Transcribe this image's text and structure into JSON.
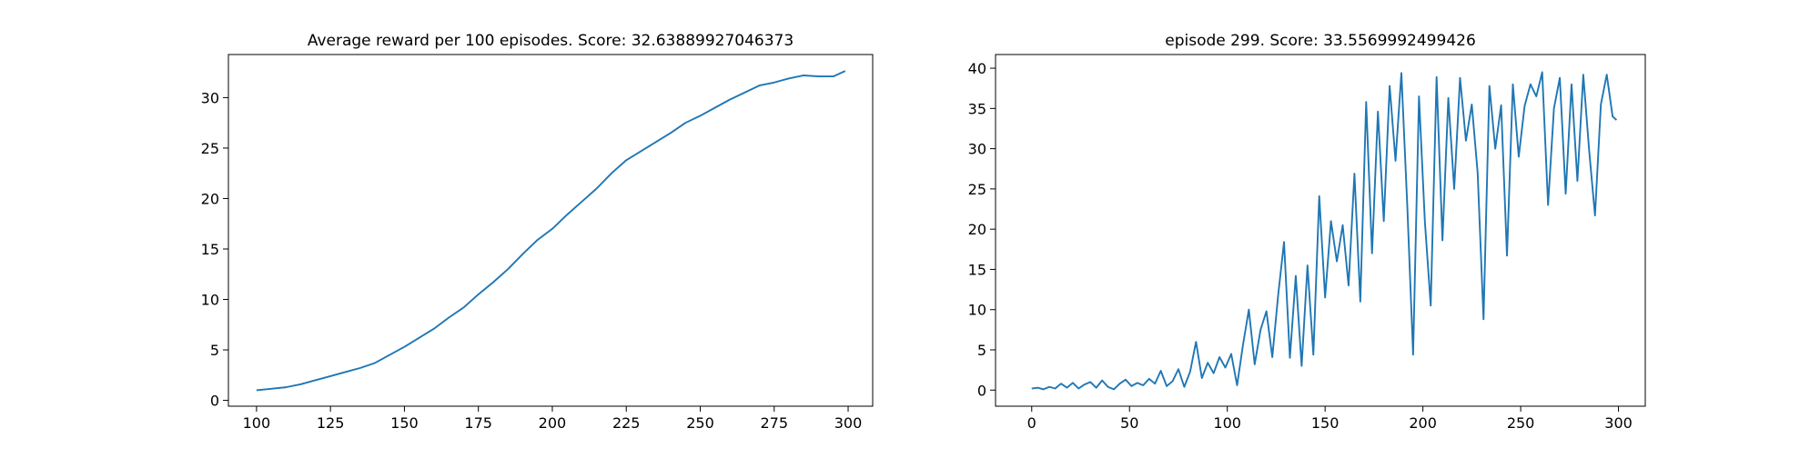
{
  "chart_data": [
    {
      "type": "line",
      "title": "Average reward per 100 episodes. Score: 32.63889927046373",
      "color": "#1f77b4",
      "x": [
        100,
        105,
        110,
        115,
        120,
        125,
        130,
        135,
        140,
        145,
        150,
        155,
        160,
        165,
        170,
        175,
        180,
        185,
        190,
        195,
        200,
        205,
        210,
        215,
        220,
        225,
        230,
        235,
        240,
        245,
        250,
        255,
        260,
        265,
        270,
        275,
        280,
        285,
        290,
        295,
        299
      ],
      "values": [
        1.0,
        1.15,
        1.3,
        1.6,
        2.0,
        2.4,
        2.8,
        3.2,
        3.7,
        4.5,
        5.3,
        6.2,
        7.1,
        8.2,
        9.2,
        10.5,
        11.7,
        13.0,
        14.5,
        15.9,
        17.0,
        18.4,
        19.7,
        21.0,
        22.5,
        23.8,
        24.7,
        25.6,
        26.5,
        27.5,
        28.2,
        29.0,
        29.8,
        30.5,
        31.2,
        31.5,
        31.9,
        32.2,
        32.1,
        32.1,
        32.64
      ],
      "xlim": [
        90.5,
        308.3
      ],
      "ylim": [
        -0.58,
        34.27
      ],
      "xticks": [
        100,
        125,
        150,
        175,
        200,
        225,
        250,
        275,
        300
      ],
      "yticks": [
        0,
        5,
        10,
        15,
        20,
        25,
        30
      ]
    },
    {
      "type": "line",
      "title": "episode 299. Score: 33.5569992499426",
      "color": "#1f77b4",
      "x": [
        0,
        3,
        6,
        9,
        12,
        15,
        18,
        21,
        24,
        27,
        30,
        33,
        36,
        39,
        42,
        45,
        48,
        51,
        54,
        57,
        60,
        63,
        66,
        69,
        72,
        75,
        78,
        81,
        84,
        87,
        90,
        93,
        96,
        99,
        102,
        105,
        108,
        111,
        114,
        117,
        120,
        123,
        126,
        129,
        132,
        135,
        138,
        141,
        144,
        147,
        150,
        153,
        156,
        159,
        162,
        165,
        168,
        171,
        174,
        177,
        180,
        183,
        186,
        189,
        192,
        195,
        198,
        201,
        204,
        207,
        210,
        213,
        216,
        219,
        222,
        225,
        228,
        231,
        234,
        237,
        240,
        243,
        246,
        249,
        252,
        255,
        258,
        261,
        264,
        267,
        270,
        273,
        276,
        279,
        282,
        285,
        288,
        291,
        294,
        297,
        299
      ],
      "values": [
        0.2,
        0.3,
        0.1,
        0.4,
        0.2,
        0.8,
        0.3,
        0.9,
        0.2,
        0.7,
        1.0,
        0.3,
        1.2,
        0.4,
        0.1,
        0.8,
        1.3,
        0.5,
        0.9,
        0.6,
        1.4,
        0.8,
        2.4,
        0.5,
        1.1,
        2.6,
        0.4,
        2.3,
        6.0,
        1.5,
        3.4,
        2.1,
        4.1,
        2.8,
        4.5,
        0.6,
        5.6,
        10.0,
        3.2,
        7.5,
        9.8,
        4.1,
        11.8,
        18.4,
        4.0,
        14.2,
        3.0,
        15.5,
        4.4,
        24.1,
        11.5,
        21.0,
        16.0,
        20.5,
        13.0,
        26.9,
        11.0,
        35.8,
        17.0,
        34.6,
        21.0,
        37.8,
        28.5,
        39.4,
        23.0,
        4.4,
        36.5,
        21.0,
        10.5,
        38.9,
        18.6,
        36.3,
        25.0,
        38.8,
        31.0,
        35.5,
        27.0,
        8.8,
        37.8,
        30.0,
        35.4,
        16.7,
        38.0,
        29.0,
        35.3,
        38.0,
        36.5,
        39.5,
        23.0,
        35.0,
        38.8,
        24.4,
        38.0,
        26.0,
        39.2,
        29.8,
        21.7,
        35.5,
        39.2,
        34.0,
        33.56
      ],
      "xlim": [
        -18.5,
        313.7
      ],
      "ylim": [
        -2.0,
        41.7
      ],
      "xticks": [
        0,
        50,
        100,
        150,
        200,
        250,
        300
      ],
      "yticks": [
        0,
        5,
        10,
        15,
        20,
        25,
        30,
        35,
        40
      ]
    }
  ]
}
